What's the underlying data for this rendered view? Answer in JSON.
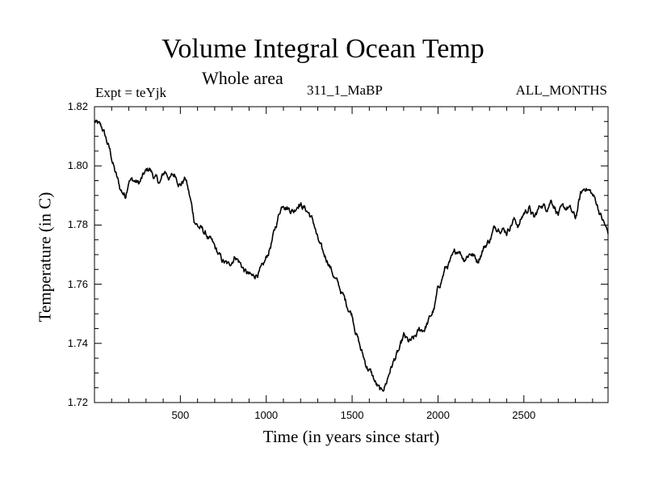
{
  "chart_data": {
    "type": "line",
    "title": "Volume Integral Ocean Temp",
    "subtitle": "Whole area",
    "expt_label": "Expt = teYjk",
    "run_id": "311_1_MaBP",
    "period_label": "ALL_MONTHS",
    "xlabel": "Time (in years since start)",
    "ylabel": "Temperature (in C)",
    "xlim": [
      0,
      2990
    ],
    "ylim": [
      1.72,
      1.82
    ],
    "xticks": [
      500,
      1000,
      1500,
      2000,
      2500
    ],
    "yticks": [
      1.72,
      1.74,
      1.76,
      1.78,
      1.8,
      1.82
    ],
    "xtick_labels": [
      "500",
      "1000",
      "1500",
      "2000",
      "2500"
    ],
    "ytick_labels": [
      "1.72",
      "1.74",
      "1.76",
      "1.78",
      "1.80",
      "1.82"
    ],
    "series": [
      {
        "name": "Volume integral ocean temperature",
        "color": "#000000",
        "x": [
          0,
          50,
          90,
          120,
          150,
          180,
          200,
          230,
          260,
          290,
          320,
          350,
          380,
          410,
          440,
          470,
          500,
          530,
          560,
          580,
          600,
          630,
          660,
          700,
          740,
          780,
          820,
          850,
          880,
          920,
          950,
          980,
          1010,
          1050,
          1080,
          1100,
          1130,
          1160,
          1190,
          1220,
          1250,
          1280,
          1300,
          1330,
          1360,
          1400,
          1440,
          1470,
          1500,
          1520,
          1550,
          1580,
          1610,
          1640,
          1670,
          1700,
          1720,
          1750,
          1780,
          1800,
          1830,
          1860,
          1890,
          1920,
          1950,
          1980,
          2000,
          2040,
          2080,
          2120,
          2150,
          2190,
          2230,
          2260,
          2300,
          2330,
          2360,
          2400,
          2440,
          2470,
          2500,
          2530,
          2560,
          2600,
          2630,
          2660,
          2700,
          2730,
          2760,
          2800,
          2830,
          2860,
          2890,
          2920,
          2950,
          2990
        ],
        "values": [
          1.815,
          1.812,
          1.805,
          1.798,
          1.792,
          1.79,
          1.796,
          1.795,
          1.794,
          1.797,
          1.799,
          1.796,
          1.794,
          1.798,
          1.796,
          1.797,
          1.794,
          1.796,
          1.788,
          1.782,
          1.78,
          1.778,
          1.776,
          1.772,
          1.768,
          1.766,
          1.77,
          1.767,
          1.764,
          1.762,
          1.764,
          1.765,
          1.77,
          1.778,
          1.785,
          1.788,
          1.786,
          1.785,
          1.788,
          1.786,
          1.784,
          1.78,
          1.775,
          1.77,
          1.768,
          1.762,
          1.757,
          1.753,
          1.75,
          1.745,
          1.738,
          1.733,
          1.73,
          1.726,
          1.723,
          1.727,
          1.731,
          1.735,
          1.738,
          1.742,
          1.74,
          1.741,
          1.744,
          1.745,
          1.748,
          1.752,
          1.758,
          1.765,
          1.768,
          1.772,
          1.769,
          1.771,
          1.768,
          1.772,
          1.775,
          1.779,
          1.78,
          1.778,
          1.782,
          1.78,
          1.784,
          1.786,
          1.782,
          1.787,
          1.786,
          1.789,
          1.784,
          1.785,
          1.786,
          1.782,
          1.79,
          1.793,
          1.791,
          1.788,
          1.783,
          1.777
        ]
      }
    ]
  }
}
